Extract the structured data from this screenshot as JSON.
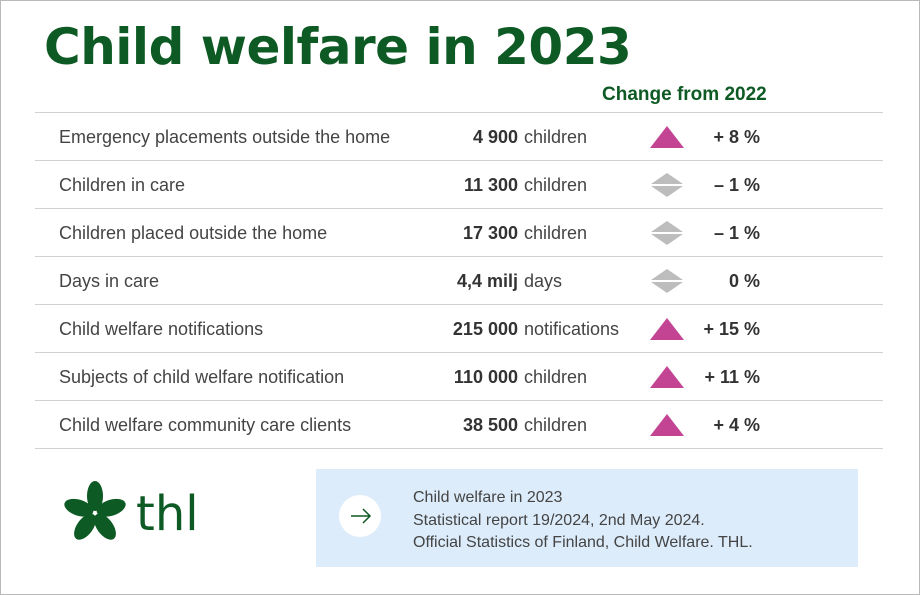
{
  "title": "Child welfare in 2023",
  "change_header": "Change from 2022",
  "colors": {
    "brand_green": "#0e5a24",
    "increase": "#c44494",
    "no_change": "#bdbdbd",
    "info_bg": "#dcecfb"
  },
  "rows": [
    {
      "label": "Emergency placements outside the home",
      "value": "4 900",
      "unit": "children",
      "trend": "up",
      "change": "+ 8 %"
    },
    {
      "label": "Children in care",
      "value": "11 300",
      "unit": "children",
      "trend": "flat",
      "change": "– 1 %"
    },
    {
      "label": "Children placed outside the home",
      "value": "17 300",
      "unit": "children",
      "trend": "flat",
      "change": "– 1 %"
    },
    {
      "label": "Days in care",
      "value": "4,4 milj",
      "unit": "days",
      "trend": "flat",
      "change": "0 %"
    },
    {
      "label": "Child welfare notifications",
      "value": "215 000",
      "unit": "notifications",
      "trend": "up",
      "change": "+ 15 %"
    },
    {
      "label": "Subjects of child welfare notification",
      "value": "110 000",
      "unit": "children",
      "trend": "up",
      "change": "+ 11 %"
    },
    {
      "label": "Child welfare community care clients",
      "value": "38 500",
      "unit": "children",
      "trend": "up",
      "change": "+ 4 %"
    }
  ],
  "logo": {
    "text": "thl"
  },
  "info": {
    "icon": "arrow-right-icon",
    "lines": [
      "Child welfare in 2023",
      "Statistical report 19/2024, 2nd May 2024.",
      "Official Statistics of Finland, Child Welfare. THL."
    ]
  }
}
